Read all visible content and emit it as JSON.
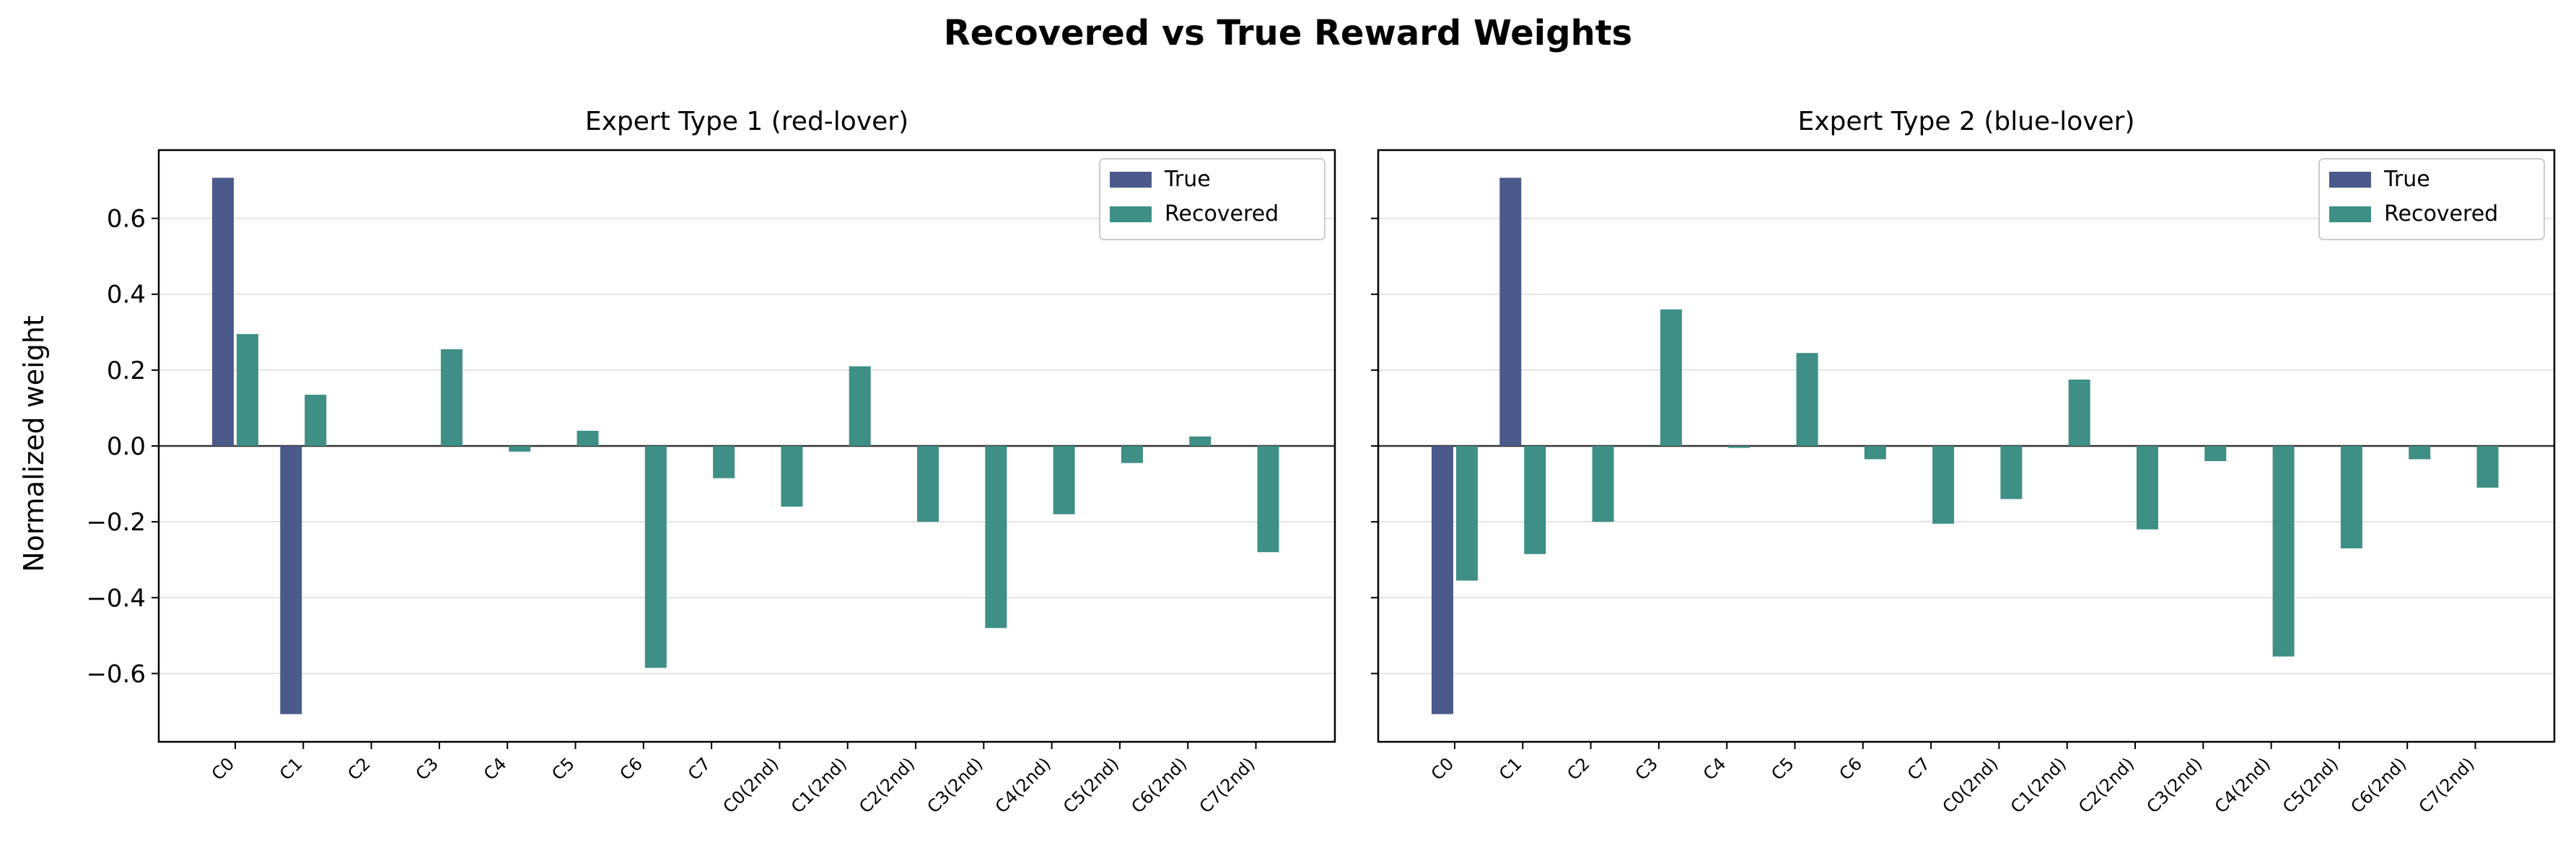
{
  "figure": {
    "title": "Recovered vs True Reward Weights",
    "ylabel": "Normalized weight"
  },
  "colors": {
    "true": "#4b5a8b",
    "recovered": "#3e8f85"
  },
  "chart_data": [
    {
      "type": "bar",
      "title": "Expert Type 1 (red-lover)",
      "xlabel": "",
      "ylabel": "Normalized weight",
      "ylim": [
        -0.78,
        0.78
      ],
      "yticks": [
        -0.6,
        -0.4,
        -0.2,
        0.0,
        0.2,
        0.4,
        0.6
      ],
      "grid": true,
      "legend": "top-right",
      "categories": [
        "C0",
        "C1",
        "C2",
        "C3",
        "C4",
        "C5",
        "C6",
        "C7",
        "C0(2nd)",
        "C1(2nd)",
        "C2(2nd)",
        "C3(2nd)",
        "C4(2nd)",
        "C5(2nd)",
        "C6(2nd)",
        "C7(2nd)"
      ],
      "series": [
        {
          "name": "True",
          "values": [
            0.707,
            -0.707,
            0,
            0,
            0,
            0,
            0,
            0,
            0,
            0,
            0,
            0,
            0,
            0,
            0,
            0
          ]
        },
        {
          "name": "Recovered",
          "values": [
            0.295,
            0.135,
            0,
            0.255,
            -0.015,
            0.04,
            -0.585,
            -0.085,
            -0.16,
            0.21,
            -0.2,
            -0.48,
            -0.18,
            -0.045,
            0.025,
            -0.28
          ]
        }
      ]
    },
    {
      "type": "bar",
      "title": "Expert Type 2 (blue-lover)",
      "xlabel": "",
      "ylabel": "",
      "ylim": [
        -0.78,
        0.78
      ],
      "yticks": [
        -0.6,
        -0.4,
        -0.2,
        0.0,
        0.2,
        0.4,
        0.6
      ],
      "grid": true,
      "legend": "top-right",
      "categories": [
        "C0",
        "C1",
        "C2",
        "C3",
        "C4",
        "C5",
        "C6",
        "C7",
        "C0(2nd)",
        "C1(2nd)",
        "C2(2nd)",
        "C3(2nd)",
        "C4(2nd)",
        "C5(2nd)",
        "C6(2nd)",
        "C7(2nd)"
      ],
      "series": [
        {
          "name": "True",
          "values": [
            -0.707,
            0.707,
            0,
            0,
            0,
            0,
            0,
            0,
            0,
            0,
            0,
            0,
            0,
            0,
            0,
            0
          ]
        },
        {
          "name": "Recovered",
          "values": [
            -0.355,
            -0.285,
            -0.2,
            0.36,
            -0.005,
            0.245,
            -0.035,
            -0.205,
            -0.14,
            0.175,
            -0.22,
            -0.04,
            -0.555,
            -0.27,
            -0.035,
            -0.11
          ]
        }
      ]
    }
  ]
}
